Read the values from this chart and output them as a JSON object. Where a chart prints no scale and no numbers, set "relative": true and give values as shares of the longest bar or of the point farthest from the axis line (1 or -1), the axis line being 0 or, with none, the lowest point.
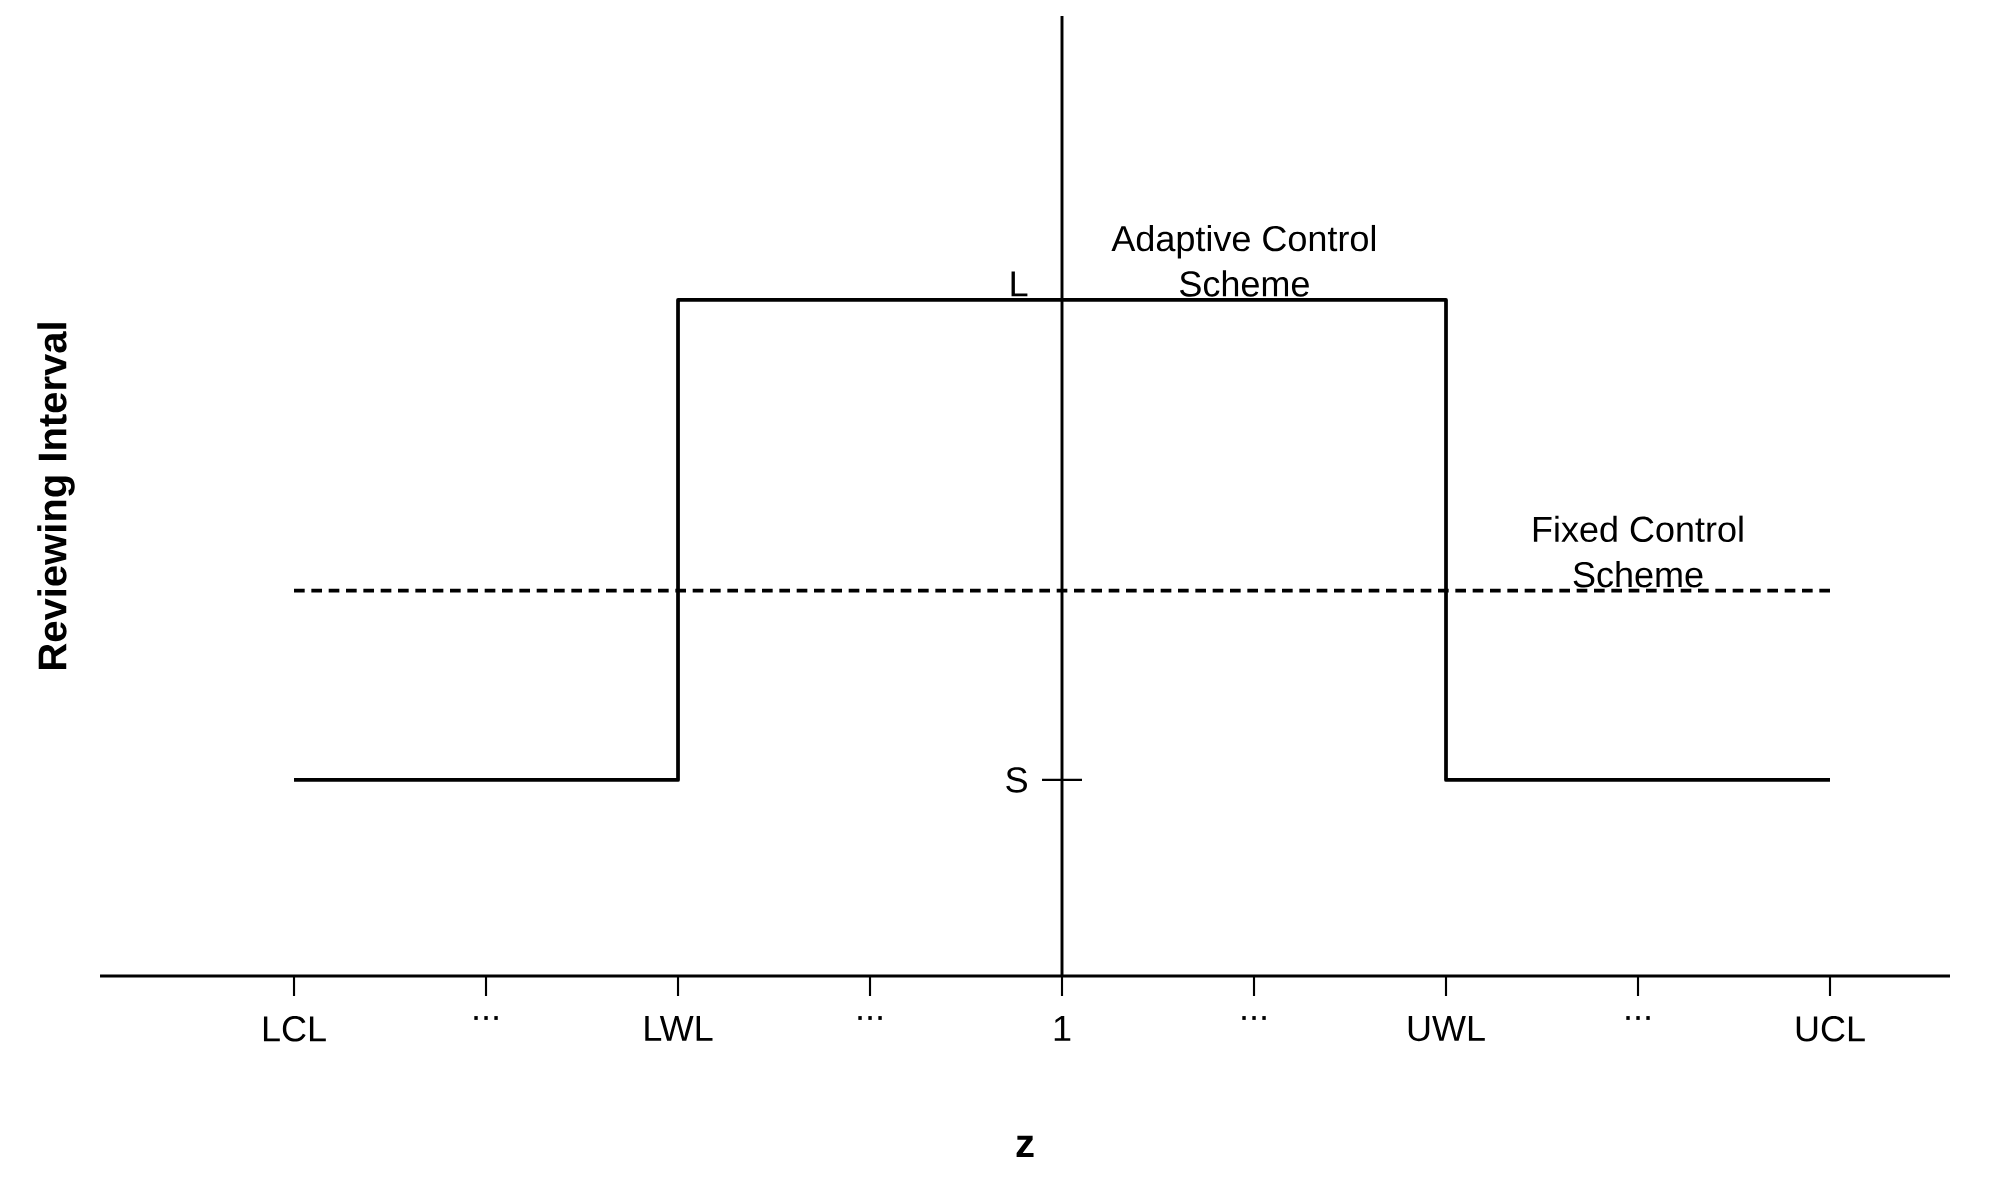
{
  "chart_data": {
    "type": "step",
    "xlabel": "z",
    "ylabel": "Reviewing Interval",
    "categories": [
      "LCL",
      "...",
      "LWL",
      "...",
      "1",
      "...",
      "UWL",
      "...",
      "UCL"
    ],
    "relative": true,
    "annotations": [
      "L",
      "S"
    ],
    "ref_lines": [
      {
        "axis": "x",
        "value": "1",
        "color": "#000000"
      }
    ],
    "series": [
      {
        "name": "Adaptive Control Scheme",
        "color": "#000000",
        "values": [
          0.29,
          0.29,
          1,
          1,
          1,
          1,
          0.29,
          0.29,
          0.29
        ]
      },
      {
        "name": "Fixed Control Scheme",
        "line_style": "dashed",
        "color": "#000000",
        "values": [
          0.57,
          0.57,
          0.57,
          0.57,
          0.57,
          0.57,
          0.57,
          0.57,
          0.57
        ]
      }
    ]
  }
}
